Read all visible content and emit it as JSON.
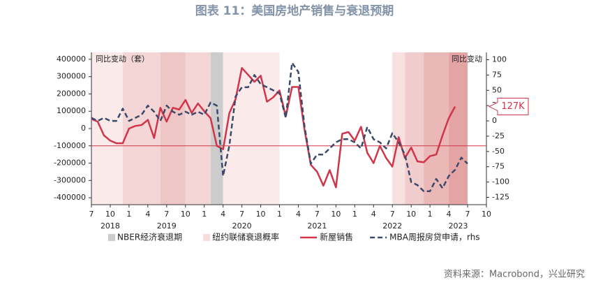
{
  "chart_data": {
    "type": "line",
    "title": "图表 11：美国房地产销售与衰退预期",
    "source": "资料来源：Macrobond，兴业研究",
    "y_label": "同比变动（套）",
    "y2_label": "同比变动",
    "x": [
      "2018-07",
      "2018-08",
      "2018-09",
      "2018-10",
      "2018-11",
      "2018-12",
      "2019-01",
      "2019-02",
      "2019-03",
      "2019-04",
      "2019-05",
      "2019-06",
      "2019-07",
      "2019-08",
      "2019-09",
      "2019-10",
      "2019-11",
      "2019-12",
      "2020-01",
      "2020-02",
      "2020-03",
      "2020-04",
      "2020-05",
      "2020-06",
      "2020-07",
      "2020-08",
      "2020-09",
      "2020-10",
      "2020-11",
      "2020-12",
      "2021-01",
      "2021-02",
      "2021-03",
      "2021-04",
      "2021-05",
      "2021-06",
      "2021-07",
      "2021-08",
      "2021-09",
      "2021-10",
      "2021-11",
      "2021-12",
      "2022-01",
      "2022-02",
      "2022-03",
      "2022-04",
      "2022-05",
      "2022-06",
      "2022-07",
      "2022-08",
      "2022-09",
      "2022-10",
      "2022-11",
      "2022-12",
      "2023-01",
      "2023-02",
      "2023-03",
      "2023-04",
      "2023-05",
      "2023-06",
      "2023-07"
    ],
    "series": [
      {
        "name": "新屋销售",
        "color": "#d0354a",
        "axis": "y",
        "dash": false,
        "values": [
          55000,
          40000,
          -40000,
          -70000,
          -85000,
          -85000,
          0,
          15000,
          20000,
          50000,
          -55000,
          120000,
          40000,
          120000,
          110000,
          165000,
          90000,
          145000,
          100000,
          60000,
          -100000,
          -120000,
          90000,
          170000,
          350000,
          310000,
          270000,
          305000,
          155000,
          180000,
          220000,
          70000,
          240000,
          240000,
          -10000,
          -210000,
          -250000,
          -330000,
          -240000,
          -340000,
          -30000,
          -20000,
          -70000,
          10000,
          -140000,
          -200000,
          -100000,
          -170000,
          -220000,
          -50000,
          -170000,
          -110000,
          -190000,
          -195000,
          -160000,
          -150000,
          -40000,
          60000,
          127000,
          null,
          null
        ],
        "value_labels": [
          null,
          null,
          null,
          null,
          null,
          null,
          null,
          null,
          null,
          null,
          null,
          null,
          null,
          null,
          null,
          null,
          null,
          null,
          null,
          null,
          null,
          null,
          null,
          null,
          null,
          null,
          null,
          null,
          null,
          null,
          null,
          null,
          null,
          null,
          null,
          null,
          null,
          null,
          null,
          null,
          null,
          null,
          null,
          null,
          null,
          null,
          null,
          null,
          null,
          null,
          null,
          null,
          null,
          null,
          null,
          null,
          null,
          null,
          "127K",
          null,
          null
        ]
      },
      {
        "name": "MBA周报房贷申请，rhs",
        "color": "#3b4a6b",
        "axis": "y2",
        "dash": true,
        "values": [
          5,
          0,
          5,
          0,
          0,
          20,
          0,
          5,
          10,
          25,
          15,
          0,
          25,
          15,
          10,
          15,
          10,
          15,
          10,
          30,
          25,
          -90,
          -40,
          40,
          55,
          55,
          75,
          60,
          55,
          50,
          45,
          5,
          95,
          80,
          -10,
          -70,
          -55,
          -55,
          -45,
          -35,
          -30,
          -30,
          -35,
          -45,
          -10,
          -30,
          -35,
          -45,
          -20,
          -35,
          -55,
          -100,
          -105,
          -115,
          -115,
          -95,
          -110,
          -90,
          -80,
          -60,
          -70
        ]
      }
    ],
    "hline": {
      "value": -100000,
      "color": "#d0354a"
    },
    "shading": [
      {
        "name": "NBER经济衰退期",
        "color": "#cccccc",
        "ranges": [
          {
            "start": "2020-02",
            "end": "2020-04",
            "color": "#cccccc"
          }
        ]
      },
      {
        "name": "纽约联储衰退概率",
        "color": "#f6dede",
        "ranges": [
          {
            "start": "2018-07",
            "end": "2018-12",
            "color": "#faeaea"
          },
          {
            "start": "2018-12",
            "end": "2019-06",
            "color": "#f4d6d6"
          },
          {
            "start": "2019-06",
            "end": "2019-10",
            "color": "#efc6c6"
          },
          {
            "start": "2019-10",
            "end": "2020-02",
            "color": "#f4d6d6"
          },
          {
            "start": "2020-04",
            "end": "2021-01",
            "color": "#faeaea"
          },
          {
            "start": "2022-07",
            "end": "2022-09",
            "color": "#f7e0e0"
          },
          {
            "start": "2022-09",
            "end": "2022-12",
            "color": "#f1cccc"
          },
          {
            "start": "2022-12",
            "end": "2023-04",
            "color": "#ebb8b8"
          },
          {
            "start": "2023-04",
            "end": "2023-07",
            "color": "#e4a4a4"
          }
        ]
      }
    ],
    "xlim": [
      "2018-07",
      "2023-10"
    ],
    "xticks": [
      {
        "value": "2018-07",
        "label": "7"
      },
      {
        "value": "2018-10",
        "label": "10"
      },
      {
        "value": "2019-01",
        "label": "1"
      },
      {
        "value": "2019-04",
        "label": "4"
      },
      {
        "value": "2019-07",
        "label": "7"
      },
      {
        "value": "2019-10",
        "label": "10"
      },
      {
        "value": "2020-01",
        "label": "1"
      },
      {
        "value": "2020-04",
        "label": "4"
      },
      {
        "value": "2020-07",
        "label": "7"
      },
      {
        "value": "2020-10",
        "label": "10"
      },
      {
        "value": "2021-01",
        "label": "1"
      },
      {
        "value": "2021-04",
        "label": "4"
      },
      {
        "value": "2021-07",
        "label": "7"
      },
      {
        "value": "2021-10",
        "label": "10"
      },
      {
        "value": "2022-01",
        "label": "1"
      },
      {
        "value": "2022-04",
        "label": "4"
      },
      {
        "value": "2022-07",
        "label": "7"
      },
      {
        "value": "2022-10",
        "label": "10"
      },
      {
        "value": "2023-01",
        "label": "1"
      },
      {
        "value": "2023-04",
        "label": "4"
      },
      {
        "value": "2023-07",
        "label": "7"
      },
      {
        "value": "2023-10",
        "label": "10"
      }
    ],
    "years": [
      "2018",
      "2019",
      "2020",
      "2021",
      "2022",
      "2023"
    ],
    "ylim": [
      -440000,
      440000
    ],
    "yticks": [
      -400000,
      -300000,
      -200000,
      -100000,
      0,
      100000,
      200000,
      300000,
      400000
    ],
    "y2lim": [
      -137,
      112
    ],
    "y2ticks": [
      -125,
      -100,
      -75,
      -50,
      -25,
      0,
      25,
      50,
      75,
      100
    ]
  }
}
